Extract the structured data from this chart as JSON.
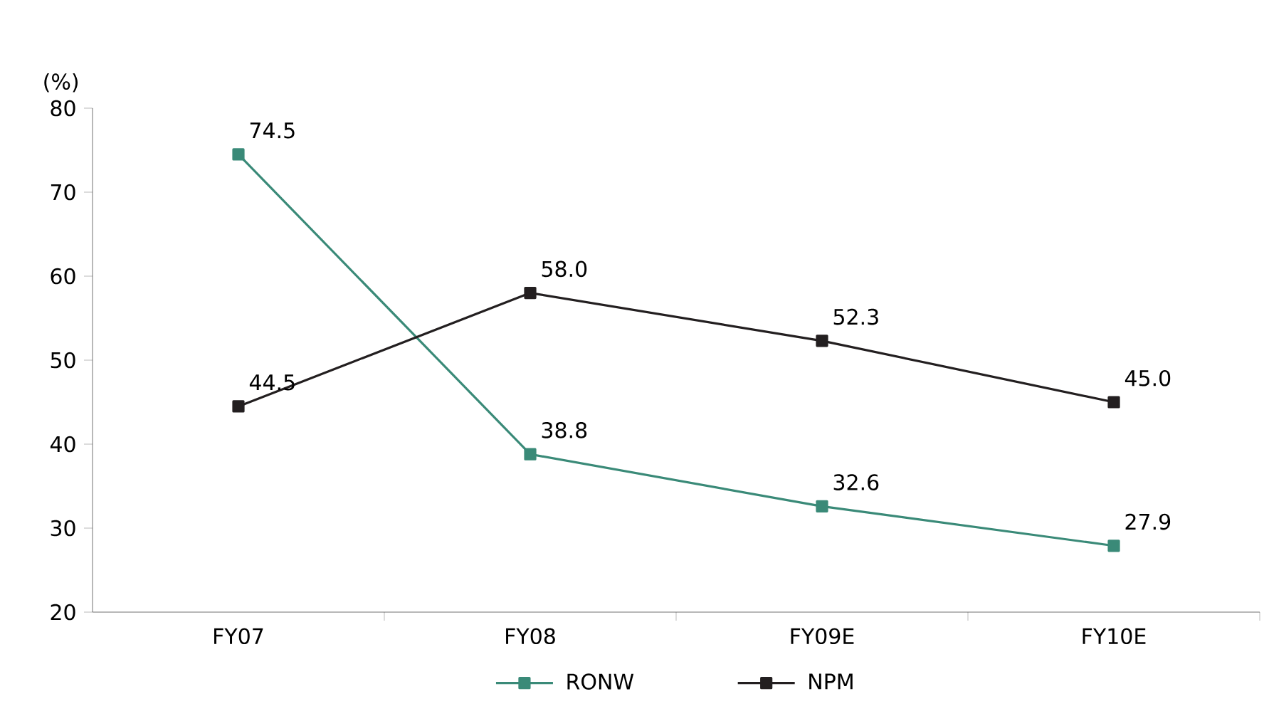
{
  "chart_data": {
    "type": "line",
    "ylabel": "(%)",
    "categories": [
      "FY07",
      "FY08",
      "FY09E",
      "FY10E"
    ],
    "series": [
      {
        "name": "RONW",
        "color": "#3a8a78",
        "values": [
          74.5,
          38.8,
          32.6,
          27.9
        ],
        "value_labels": [
          "74.5",
          "38.8",
          "32.6",
          "27.9"
        ]
      },
      {
        "name": "NPM",
        "color": "#231f20",
        "values": [
          44.5,
          58.0,
          52.3,
          45.0
        ],
        "value_labels": [
          "44.5",
          "58.0",
          "52.3",
          "45.0"
        ]
      }
    ],
    "ylim": [
      20,
      80
    ],
    "yticks": [
      20,
      30,
      40,
      50,
      60,
      70,
      80
    ],
    "grid": false,
    "legend": "bottom",
    "marker": "square",
    "line_style": "solid"
  }
}
